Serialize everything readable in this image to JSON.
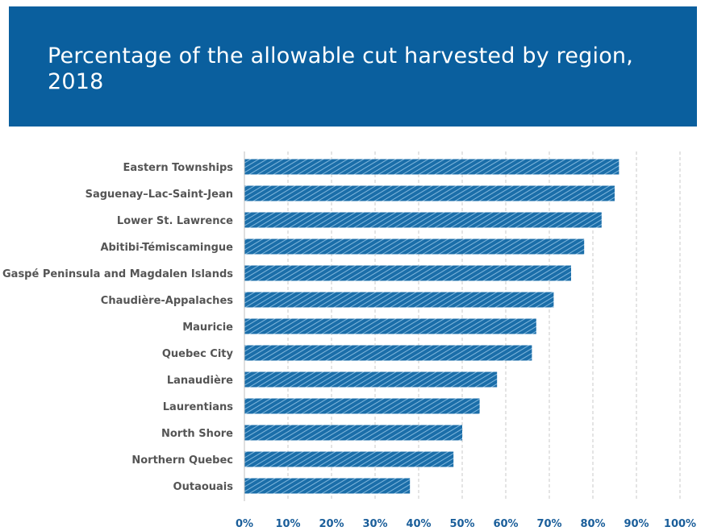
{
  "chart_data": {
    "type": "bar",
    "orientation": "horizontal",
    "title": "Percentage of the allowable cut harvested by region, 2018",
    "categories": [
      "Eastern Townships",
      "Saguenay–Lac-Saint-Jean",
      "Lower St. Lawrence",
      "Abitibi-Témiscamingue",
      "Gaspé Peninsula and Magdalen Islands",
      "Chaudière-Appalaches",
      "Mauricie",
      "Quebec City",
      "Lanaudière",
      "Laurentians",
      "North Shore",
      "Northern Quebec",
      "Outaouais"
    ],
    "values": [
      86,
      85,
      82,
      78,
      75,
      71,
      67,
      66,
      58,
      54,
      50,
      48,
      38
    ],
    "xlim": [
      0,
      100
    ],
    "xticks": [
      "0%",
      "10%",
      "20%",
      "30%",
      "40%",
      "50%",
      "60%",
      "70%",
      "80%",
      "90%",
      "100%"
    ],
    "grid": "vertical-dashed",
    "legend": "none",
    "colors": {
      "bar": "#1b6ea9",
      "hatch": "#7fb6dd",
      "title_bg": "#0a5f9e",
      "tick_text": "#1a5e9a",
      "label_text": "#555555"
    }
  }
}
